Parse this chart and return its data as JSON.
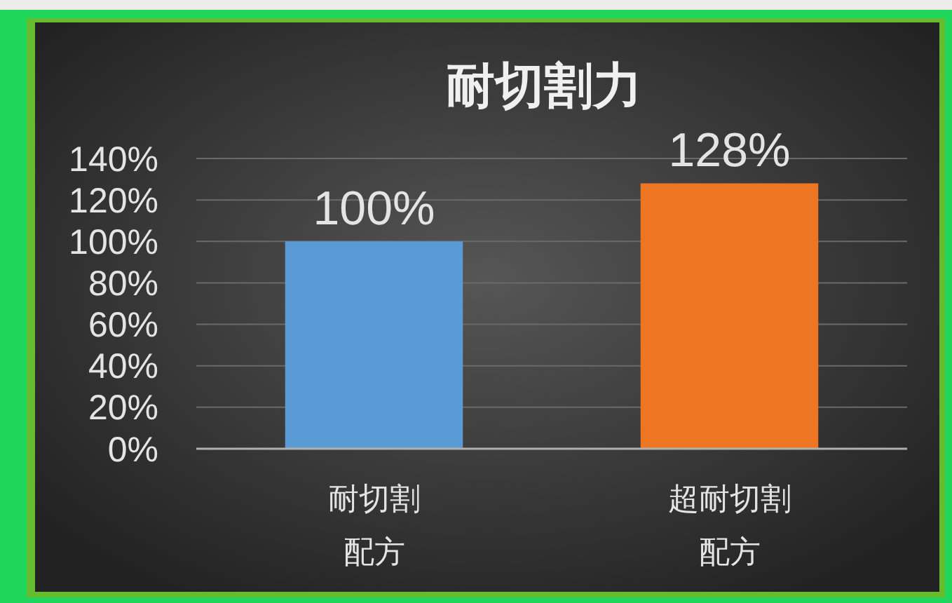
{
  "chart_data": {
    "type": "bar",
    "title": "耐切割力",
    "categories": [
      "耐切割配方",
      "超耐切割配方"
    ],
    "values": [
      100,
      128
    ],
    "colors": [
      "#5b9bd5",
      "#ee7623"
    ],
    "value_labels": [
      "100%",
      "128%"
    ],
    "ylim": [
      0,
      140
    ],
    "yticks": [
      {
        "value": 0,
        "label": "0%"
      },
      {
        "value": 20,
        "label": "20%"
      },
      {
        "value": 40,
        "label": "40%"
      },
      {
        "value": 60,
        "label": "60%"
      },
      {
        "value": 80,
        "label": "80%"
      },
      {
        "value": 100,
        "label": "100%"
      },
      {
        "value": 120,
        "label": "120%"
      },
      {
        "value": 140,
        "label": "140%"
      }
    ],
    "grid": "y"
  }
}
